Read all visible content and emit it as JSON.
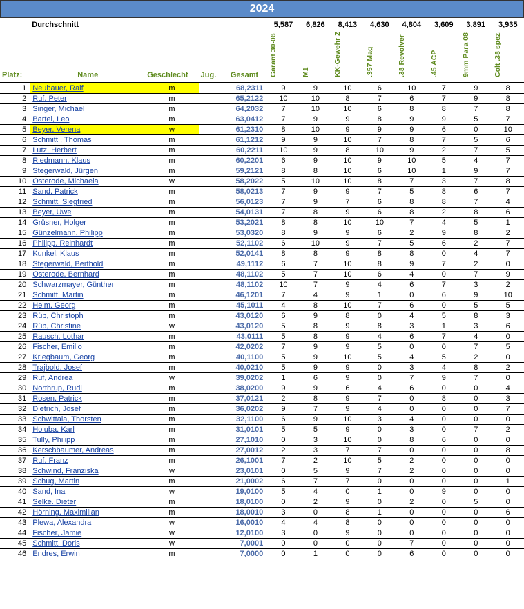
{
  "year": "2024",
  "avg_label": "Durchschnitt",
  "averages": [
    "5,587",
    "6,826",
    "8,413",
    "4,630",
    "4,804",
    "3,609",
    "3,891",
    "3,935"
  ],
  "headers": {
    "platz": "Platz:",
    "name": "Name",
    "geschlecht": "Geschlecht",
    "jug": "Jug.",
    "gesamt": "Gesamt",
    "disciplines": [
      "Garant 30-06",
      "M1",
      "KK-Gewehr Zielfernrohr",
      ".357 Mag",
      ".38 Revolver",
      ".45 ACP",
      "9mm Para 08",
      "Colt .38 spez."
    ]
  },
  "header_color": "#5f8b1f",
  "year_bg": "#5b8bc9",
  "total_color": "#4a6aa8",
  "link_color": "#1a44a5",
  "highlight_color": "#ffff00",
  "rows": [
    {
      "p": 1,
      "name": "Neubauer, Ralf",
      "g": "m",
      "t": "68,2311",
      "d": [
        "9",
        "9",
        "10",
        "6",
        "10",
        "7",
        "9",
        "8"
      ],
      "hl": true
    },
    {
      "p": 2,
      "name": "Ruf, Peter",
      "g": "m",
      "t": "65,2122",
      "d": [
        "10",
        "10",
        "8",
        "7",
        "6",
        "7",
        "9",
        "8"
      ]
    },
    {
      "p": 3,
      "name": "Singer, Michael",
      "g": "m",
      "t": "64,2032",
      "d": [
        "7",
        "10",
        "10",
        "6",
        "8",
        "8",
        "7",
        "8"
      ]
    },
    {
      "p": 4,
      "name": "Bartel, Leo",
      "g": "m",
      "t": "63,0412",
      "d": [
        "7",
        "9",
        "9",
        "8",
        "9",
        "9",
        "5",
        "7"
      ]
    },
    {
      "p": 5,
      "name": "Beyer, Verena",
      "g": "w",
      "t": "61,2310",
      "d": [
        "8",
        "10",
        "9",
        "9",
        "9",
        "6",
        "0",
        "10"
      ],
      "hl": true
    },
    {
      "p": 6,
      "name": "Schmitt , Thomas",
      "g": "m",
      "t": "61,1212",
      "d": [
        "9",
        "9",
        "10",
        "7",
        "8",
        "7",
        "5",
        "6"
      ]
    },
    {
      "p": 7,
      "name": "Lutz, Herbert",
      "g": "m",
      "t": "60,2211",
      "d": [
        "10",
        "9",
        "8",
        "10",
        "9",
        "2",
        "7",
        "5"
      ]
    },
    {
      "p": 8,
      "name": "Riedmann, Klaus",
      "g": "m",
      "t": "60,2201",
      "d": [
        "6",
        "9",
        "10",
        "9",
        "10",
        "5",
        "4",
        "7"
      ]
    },
    {
      "p": 9,
      "name": "Stegerwald, Jürgen",
      "g": "m",
      "t": "59,2121",
      "d": [
        "8",
        "8",
        "10",
        "6",
        "10",
        "1",
        "9",
        "7"
      ]
    },
    {
      "p": 10,
      "name": "Osterode, Michaela",
      "g": "w",
      "t": "58,2022",
      "d": [
        "5",
        "10",
        "10",
        "8",
        "7",
        "3",
        "7",
        "8"
      ]
    },
    {
      "p": 11,
      "name": "Sand, Patrick",
      "g": "m",
      "t": "58,0213",
      "d": [
        "7",
        "9",
        "9",
        "7",
        "5",
        "8",
        "6",
        "7"
      ]
    },
    {
      "p": 12,
      "name": "Schmitt, Siegfried",
      "g": "m",
      "t": "56,0123",
      "d": [
        "7",
        "9",
        "7",
        "6",
        "8",
        "8",
        "7",
        "4"
      ]
    },
    {
      "p": 13,
      "name": "Beyer, Uwe",
      "g": "m",
      "t": "54,0131",
      "d": [
        "7",
        "8",
        "9",
        "6",
        "8",
        "2",
        "8",
        "6"
      ]
    },
    {
      "p": 14,
      "name": "Grüsner, Holger",
      "g": "m",
      "t": "53,2021",
      "d": [
        "8",
        "8",
        "10",
        "10",
        "7",
        "4",
        "5",
        "1"
      ]
    },
    {
      "p": 15,
      "name": "Günzelmann, Philipp",
      "g": "m",
      "t": "53,0320",
      "d": [
        "8",
        "9",
        "9",
        "6",
        "2",
        "9",
        "8",
        "2"
      ]
    },
    {
      "p": 16,
      "name": "Philipp, Reinhardt",
      "g": "m",
      "t": "52,1102",
      "d": [
        "6",
        "10",
        "9",
        "7",
        "5",
        "6",
        "2",
        "7"
      ]
    },
    {
      "p": 17,
      "name": "Kunkel, Klaus",
      "g": "m",
      "t": "52,0141",
      "d": [
        "8",
        "8",
        "9",
        "8",
        "8",
        "0",
        "4",
        "7"
      ]
    },
    {
      "p": 18,
      "name": "Stegerwald, Berthold",
      "g": "m",
      "t": "49,1112",
      "d": [
        "6",
        "7",
        "10",
        "8",
        "9",
        "7",
        "2",
        "0"
      ]
    },
    {
      "p": 19,
      "name": "Osterode, Bernhard",
      "g": "m",
      "t": "48,1102",
      "d": [
        "5",
        "7",
        "10",
        "6",
        "4",
        "0",
        "7",
        "9"
      ]
    },
    {
      "p": 20,
      "name": "Schwarzmayer, Günther",
      "g": "m",
      "t": "48,1102",
      "d": [
        "10",
        "7",
        "9",
        "4",
        "6",
        "7",
        "3",
        "2"
      ]
    },
    {
      "p": 21,
      "name": "Schmitt, Martin",
      "g": "m",
      "t": "46,1201",
      "d": [
        "7",
        "4",
        "9",
        "1",
        "0",
        "6",
        "9",
        "10"
      ]
    },
    {
      "p": 22,
      "name": "Heim, Georg",
      "g": "m",
      "t": "45,1011",
      "d": [
        "4",
        "8",
        "10",
        "7",
        "6",
        "0",
        "5",
        "5"
      ]
    },
    {
      "p": 23,
      "name": "Rüb, Christoph",
      "g": "m",
      "t": "43,0120",
      "d": [
        "6",
        "9",
        "8",
        "0",
        "4",
        "5",
        "8",
        "3"
      ]
    },
    {
      "p": 24,
      "name": "Rüb, Christine",
      "g": "w",
      "t": "43,0120",
      "d": [
        "5",
        "8",
        "9",
        "8",
        "3",
        "1",
        "3",
        "6"
      ]
    },
    {
      "p": 25,
      "name": "Rausch, Lothar",
      "g": "m",
      "t": "43,0111",
      "d": [
        "5",
        "8",
        "9",
        "4",
        "6",
        "7",
        "4",
        "0"
      ]
    },
    {
      "p": 26,
      "name": "Fischer, Emilio",
      "g": "m",
      "t": "42,0202",
      "d": [
        "7",
        "9",
        "9",
        "5",
        "0",
        "0",
        "7",
        "5"
      ]
    },
    {
      "p": 27,
      "name": "Kriegbaum, Georg",
      "g": "m",
      "t": "40,1100",
      "d": [
        "5",
        "9",
        "10",
        "5",
        "4",
        "5",
        "2",
        "0"
      ]
    },
    {
      "p": 28,
      "name": "Trajbold, Josef",
      "g": "m",
      "t": "40,0210",
      "d": [
        "5",
        "9",
        "9",
        "0",
        "3",
        "4",
        "8",
        "2"
      ]
    },
    {
      "p": 29,
      "name": "Ruf, Andrea",
      "g": "w",
      "t": "39,0202",
      "d": [
        "1",
        "6",
        "9",
        "0",
        "7",
        "9",
        "7",
        "0"
      ]
    },
    {
      "p": 30,
      "name": "Northrup, Rudi",
      "g": "m",
      "t": "38,0200",
      "d": [
        "9",
        "9",
        "6",
        "4",
        "6",
        "0",
        "0",
        "4"
      ]
    },
    {
      "p": 31,
      "name": "Rosen, Patrick",
      "g": "m",
      "t": "37,0121",
      "d": [
        "2",
        "8",
        "9",
        "7",
        "0",
        "8",
        "0",
        "3"
      ]
    },
    {
      "p": 32,
      "name": "Dietrich, Josef",
      "g": "m",
      "t": "36,0202",
      "d": [
        "9",
        "7",
        "9",
        "4",
        "0",
        "0",
        "0",
        "7"
      ]
    },
    {
      "p": 33,
      "name": "Schwittala, Thorsten",
      "g": "m",
      "t": "32,1100",
      "d": [
        "6",
        "9",
        "10",
        "3",
        "4",
        "0",
        "0",
        "0"
      ]
    },
    {
      "p": 34,
      "name": "Holuba, Karl",
      "g": "m",
      "t": "31,0101",
      "d": [
        "5",
        "5",
        "9",
        "0",
        "3",
        "0",
        "7",
        "2"
      ]
    },
    {
      "p": 35,
      "name": "Tully, Philipp",
      "g": "m",
      "t": "27,1010",
      "d": [
        "0",
        "3",
        "10",
        "0",
        "8",
        "6",
        "0",
        "0"
      ]
    },
    {
      "p": 36,
      "name": "Kerschbaumer, Andreas",
      "g": "m",
      "t": "27,0012",
      "d": [
        "2",
        "3",
        "7",
        "7",
        "0",
        "0",
        "0",
        "8"
      ]
    },
    {
      "p": 37,
      "name": "Ruf, Franz",
      "g": "m",
      "t": "26,1001",
      "d": [
        "7",
        "2",
        "10",
        "5",
        "2",
        "0",
        "0",
        "0"
      ]
    },
    {
      "p": 38,
      "name": "Schwind, Franziska",
      "g": "w",
      "t": "23,0101",
      "d": [
        "0",
        "5",
        "9",
        "7",
        "2",
        "0",
        "0",
        "0"
      ]
    },
    {
      "p": 39,
      "name": "Schug, Martin",
      "g": "m",
      "t": "21,0002",
      "d": [
        "6",
        "7",
        "7",
        "0",
        "0",
        "0",
        "0",
        "1"
      ]
    },
    {
      "p": 40,
      "name": "Sand, Ina",
      "g": "w",
      "t": "19,0100",
      "d": [
        "5",
        "4",
        "0",
        "1",
        "0",
        "9",
        "0",
        "0"
      ]
    },
    {
      "p": 41,
      "name": "Selke. Dieter",
      "g": "m",
      "t": "18,0100",
      "d": [
        "0",
        "2",
        "9",
        "0",
        "2",
        "0",
        "5",
        "0"
      ]
    },
    {
      "p": 42,
      "name": "Hörning, Maximilian",
      "g": "m",
      "t": "18,0010",
      "d": [
        "3",
        "0",
        "8",
        "1",
        "0",
        "0",
        "0",
        "6"
      ]
    },
    {
      "p": 43,
      "name": "Plewa, Alexandra",
      "g": "w",
      "t": "16,0010",
      "d": [
        "4",
        "4",
        "8",
        "0",
        "0",
        "0",
        "0",
        "0"
      ]
    },
    {
      "p": 44,
      "name": "Fischer, Jamie",
      "g": "w",
      "t": "12,0100",
      "d": [
        "3",
        "0",
        "9",
        "0",
        "0",
        "0",
        "0",
        "0"
      ]
    },
    {
      "p": 45,
      "name": "Schmitt, Doris",
      "g": "w",
      "t": "7,0001",
      "d": [
        "0",
        "0",
        "0",
        "0",
        "7",
        "0",
        "0",
        "0"
      ]
    },
    {
      "p": 46,
      "name": "Endres, Erwin",
      "g": "m",
      "t": "7,0000",
      "d": [
        "0",
        "1",
        "0",
        "0",
        "6",
        "0",
        "0",
        "0"
      ]
    }
  ]
}
